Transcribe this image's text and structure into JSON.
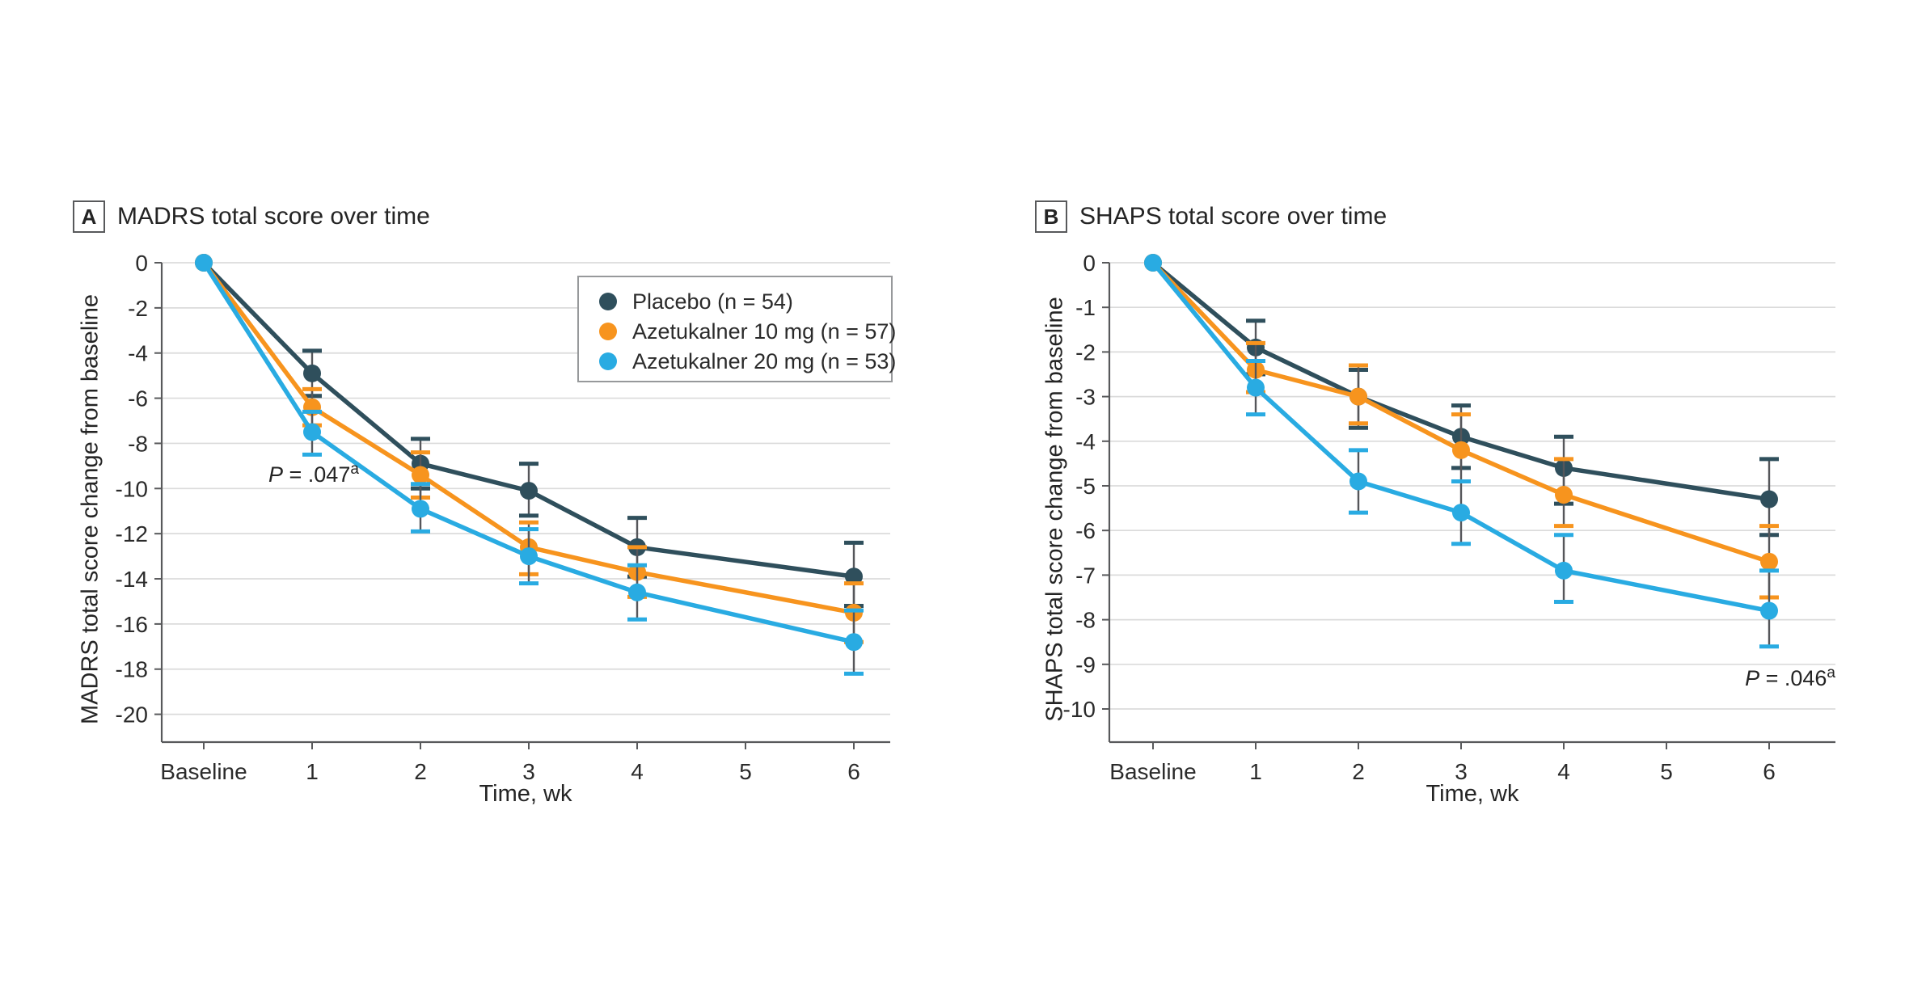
{
  "colors": {
    "placebo": "#2F4F5C",
    "azetukalner_10": "#F7941E",
    "azetukalner_20": "#29ABE2",
    "grid": "#DBDBDB",
    "axis": "#58595B",
    "error_stem": "#55565A",
    "text": "#2B2B2B"
  },
  "legend": {
    "entries": [
      {
        "label": "Placebo (n = 54)",
        "color_key": "placebo"
      },
      {
        "label": "Azetukalner 10 mg (n = 57)",
        "color_key": "azetukalner_10"
      },
      {
        "label": "Azetukalner 20 mg (n = 53)",
        "color_key": "azetukalner_20"
      }
    ]
  },
  "chart_data": [
    {
      "type": "line",
      "panel_label": "A",
      "title": "MADRS total score over time",
      "x_label": "Time, wk",
      "y_label": "MADRS total score change from baseline",
      "x_categories": [
        "Baseline",
        "1",
        "2",
        "3",
        "4",
        "5",
        "6"
      ],
      "y_ticks": [
        0,
        -2,
        -4,
        -6,
        -8,
        -10,
        -12,
        -14,
        -16,
        -18,
        -20
      ],
      "ylim": [
        0,
        -21
      ],
      "grid": true,
      "legend_position": "top-right-inside",
      "p_annotation": {
        "italic": "P",
        "rest": " = .047",
        "sup": "a"
      },
      "series": [
        {
          "name": "Placebo (n = 54)",
          "color_key": "placebo",
          "x": [
            0,
            1,
            2,
            3,
            4,
            6
          ],
          "values": [
            0,
            -4.9,
            -8.9,
            -10.1,
            -12.6,
            -13.9
          ],
          "ci_high": [
            null,
            -3.9,
            -7.8,
            -8.9,
            -11.3,
            -12.4
          ],
          "ci_low": [
            null,
            -5.9,
            -10.0,
            -11.2,
            -13.9,
            -15.2
          ]
        },
        {
          "name": "Azetukalner 10 mg (n = 57)",
          "color_key": "azetukalner_10",
          "x": [
            0,
            1,
            2,
            3,
            4,
            6
          ],
          "values": [
            0,
            -6.4,
            -9.4,
            -12.6,
            -13.7,
            -15.5
          ],
          "ci_high": [
            null,
            -5.6,
            -8.4,
            -11.5,
            -12.6,
            -14.2
          ],
          "ci_low": [
            null,
            -7.2,
            -10.4,
            -13.8,
            -14.8,
            -16.8
          ]
        },
        {
          "name": "Azetukalner 20 mg (n = 53)",
          "color_key": "azetukalner_20",
          "x": [
            0,
            1,
            2,
            3,
            4,
            6
          ],
          "values": [
            0,
            -7.5,
            -10.9,
            -13.0,
            -14.6,
            -16.8
          ],
          "ci_high": [
            null,
            -6.6,
            -9.8,
            -11.8,
            -13.4,
            -15.4
          ],
          "ci_low": [
            null,
            -8.5,
            -11.9,
            -14.2,
            -15.8,
            -18.2
          ]
        }
      ]
    },
    {
      "type": "line",
      "panel_label": "B",
      "title": "SHAPS total score over time",
      "x_label": "Time, wk",
      "y_label": "SHAPS total score change from baseline",
      "x_categories": [
        "Baseline",
        "1",
        "2",
        "3",
        "4",
        "5",
        "6"
      ],
      "y_ticks": [
        0,
        -1,
        -2,
        -3,
        -4,
        -5,
        -6,
        -7,
        -8,
        -9,
        -10
      ],
      "ylim": [
        0,
        -10.6
      ],
      "grid": true,
      "legend_position": "none",
      "p_annotation": {
        "italic": "P",
        "rest": " = .046",
        "sup": "a"
      },
      "series": [
        {
          "name": "Placebo (n = 54)",
          "color_key": "placebo",
          "x": [
            0,
            1,
            2,
            3,
            4,
            6
          ],
          "values": [
            0,
            -1.9,
            -3.0,
            -3.9,
            -4.6,
            -5.3
          ],
          "ci_high": [
            null,
            -1.3,
            -2.4,
            -3.2,
            -3.9,
            -4.4
          ],
          "ci_low": [
            null,
            -2.5,
            -3.7,
            -4.6,
            -5.4,
            -6.1
          ]
        },
        {
          "name": "Azetukalner 10 mg (n = 57)",
          "color_key": "azetukalner_10",
          "x": [
            0,
            1,
            2,
            3,
            4,
            6
          ],
          "values": [
            0,
            -2.4,
            -3.0,
            -4.2,
            -5.2,
            -6.7
          ],
          "ci_high": [
            null,
            -1.8,
            -2.3,
            -3.4,
            -4.4,
            -5.9
          ],
          "ci_low": [
            null,
            -2.9,
            -3.6,
            -4.9,
            -5.9,
            -7.5
          ]
        },
        {
          "name": "Azetukalner 20 mg (n = 53)",
          "color_key": "azetukalner_20",
          "x": [
            0,
            1,
            2,
            3,
            4,
            6
          ],
          "values": [
            0,
            -2.8,
            -4.9,
            -5.6,
            -6.9,
            -7.8
          ],
          "ci_high": [
            null,
            -2.2,
            -4.2,
            -4.9,
            -6.1,
            -6.9
          ],
          "ci_low": [
            null,
            -3.4,
            -5.6,
            -6.3,
            -7.6,
            -8.6
          ]
        }
      ]
    }
  ]
}
